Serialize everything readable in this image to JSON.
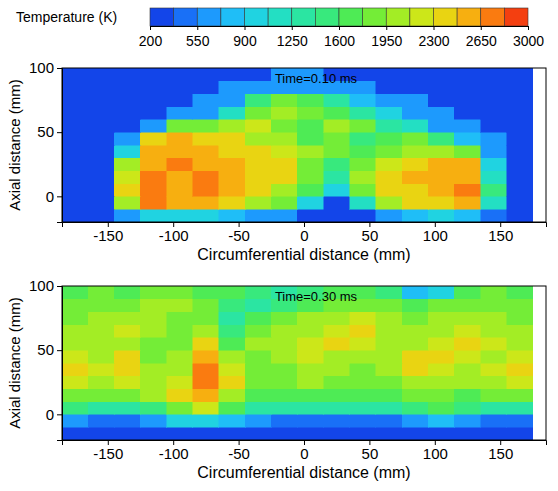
{
  "chart_data": [
    {
      "type": "heatmap",
      "annotation": "Time=0.10 ms",
      "xlabel": "Circumferential distance (mm)",
      "ylabel": "Axial distance (mm)",
      "xlim": [
        -185,
        185
      ],
      "ylim": [
        -20,
        100
      ],
      "xticks": [
        -150,
        -100,
        -50,
        0,
        50,
        100,
        150
      ],
      "yticks": [
        0,
        50,
        100
      ],
      "colorbar": {
        "title": "Temperature (K)",
        "range": [
          200,
          3000
        ],
        "ticks": [
          200,
          550,
          900,
          1250,
          1600,
          1950,
          2300,
          2650,
          3000
        ]
      },
      "x": [
        -175,
        -155,
        -135,
        -115,
        -95,
        -75,
        -55,
        -35,
        -15,
        5,
        25,
        45,
        65,
        85,
        105,
        125,
        145,
        165
      ],
      "y": [
        -15,
        -5,
        5,
        15,
        25,
        35,
        45,
        55,
        65,
        75,
        85,
        95
      ],
      "z": [
        [
          200,
          200,
          600,
          1000,
          900,
          900,
          800,
          700,
          600,
          300,
          200,
          300,
          700,
          800,
          900,
          800,
          400,
          200
        ],
        [
          200,
          200,
          2000,
          2700,
          2500,
          2600,
          2400,
          2100,
          1800,
          1000,
          300,
          1200,
          2000,
          2300,
          2400,
          2600,
          1200,
          200
        ],
        [
          200,
          200,
          2300,
          2800,
          2600,
          2700,
          2500,
          2400,
          2100,
          1700,
          1000,
          1800,
          2300,
          2400,
          2500,
          2700,
          1500,
          200
        ],
        [
          250,
          250,
          2200,
          2700,
          2600,
          2700,
          2600,
          2400,
          2300,
          1900,
          1400,
          2000,
          2400,
          2500,
          2600,
          2600,
          1200,
          250
        ],
        [
          250,
          250,
          2000,
          2600,
          2700,
          2600,
          2500,
          2400,
          2300,
          1900,
          1500,
          1800,
          2200,
          2400,
          2500,
          2500,
          1000,
          250
        ],
        [
          250,
          250,
          1000,
          2500,
          2600,
          2500,
          2400,
          2300,
          2200,
          2000,
          1800,
          1700,
          1800,
          2000,
          2100,
          1800,
          700,
          250
        ],
        [
          250,
          250,
          600,
          2300,
          2500,
          2400,
          2300,
          2100,
          2000,
          1700,
          1900,
          1500,
          1600,
          1800,
          1500,
          800,
          600,
          250
        ],
        [
          250,
          250,
          250,
          600,
          1800,
          1900,
          2000,
          2200,
          1900,
          1700,
          2000,
          1800,
          1400,
          1200,
          700,
          600,
          250,
          250
        ],
        [
          250,
          250,
          250,
          250,
          600,
          700,
          1200,
          1900,
          2100,
          1800,
          1600,
          1300,
          900,
          700,
          600,
          250,
          250,
          250
        ],
        [
          250,
          250,
          250,
          250,
          250,
          600,
          700,
          1500,
          1900,
          1700,
          1400,
          800,
          600,
          600,
          250,
          250,
          250,
          250
        ],
        [
          250,
          250,
          250,
          250,
          250,
          250,
          600,
          600,
          700,
          700,
          600,
          600,
          250,
          250,
          250,
          250,
          250,
          250
        ],
        [
          250,
          250,
          250,
          250,
          250,
          250,
          250,
          250,
          600,
          600,
          250,
          250,
          250,
          250,
          250,
          250,
          250,
          250
        ]
      ]
    },
    {
      "type": "heatmap",
      "annotation": "Time=0.30 ms",
      "xlabel": "Circumferential distance (mm)",
      "ylabel": "Axial distance (mm)",
      "xlim": [
        -185,
        185
      ],
      "ylim": [
        -20,
        100
      ],
      "xticks": [
        -150,
        -100,
        -50,
        0,
        50,
        100,
        150
      ],
      "yticks": [
        0,
        50,
        100
      ],
      "x": [
        -175,
        -155,
        -135,
        -115,
        -95,
        -75,
        -55,
        -35,
        -15,
        5,
        25,
        45,
        65,
        85,
        105,
        125,
        145,
        165
      ],
      "y": [
        -15,
        -5,
        5,
        15,
        25,
        35,
        45,
        55,
        65,
        75,
        85,
        95
      ],
      "z": [
        [
          250,
          250,
          250,
          250,
          300,
          300,
          250,
          250,
          250,
          250,
          250,
          250,
          250,
          250,
          250,
          250,
          250,
          250
        ],
        [
          600,
          500,
          500,
          600,
          900,
          1000,
          800,
          600,
          500,
          500,
          500,
          500,
          500,
          600,
          800,
          600,
          500,
          500
        ],
        [
          1500,
          1400,
          1400,
          1500,
          1900,
          2200,
          1700,
          1400,
          1400,
          1400,
          1400,
          1400,
          1400,
          1500,
          1700,
          1500,
          1400,
          1400
        ],
        [
          1900,
          1800,
          1800,
          2000,
          2300,
          2600,
          2100,
          1700,
          1600,
          1700,
          1700,
          1600,
          1700,
          1800,
          1900,
          1700,
          1800,
          1800
        ],
        [
          2200,
          2100,
          2200,
          2100,
          2200,
          2700,
          2300,
          1900,
          1800,
          2000,
          1900,
          1800,
          1900,
          2100,
          2000,
          2000,
          2100,
          2200
        ],
        [
          2300,
          2200,
          2300,
          2000,
          2100,
          2700,
          2200,
          1900,
          1900,
          2100,
          2000,
          1900,
          2000,
          2300,
          2200,
          2100,
          2200,
          2300
        ],
        [
          2200,
          2100,
          2300,
          1800,
          2000,
          2500,
          2000,
          1900,
          2000,
          2200,
          2100,
          2100,
          2000,
          2300,
          2400,
          2200,
          2100,
          2200
        ],
        [
          2100,
          2000,
          2100,
          1900,
          1900,
          2300,
          1700,
          2000,
          2100,
          2200,
          2300,
          2200,
          2000,
          2100,
          2200,
          2300,
          2200,
          2100
        ],
        [
          2000,
          2100,
          2200,
          2000,
          1800,
          2100,
          1500,
          1900,
          2000,
          2100,
          2200,
          2400,
          2100,
          2000,
          2100,
          2200,
          2100,
          2000
        ],
        [
          1900,
          2000,
          2100,
          2000,
          1900,
          1800,
          1400,
          1700,
          1900,
          2000,
          2100,
          2200,
          2000,
          1900,
          2000,
          2100,
          2000,
          1900
        ],
        [
          1800,
          1900,
          1900,
          2000,
          2000,
          1800,
          1500,
          1300,
          1500,
          1700,
          1800,
          1900,
          1800,
          1700,
          1800,
          1900,
          1800,
          1800
        ],
        [
          1700,
          1800,
          1700,
          1800,
          1900,
          1700,
          1600,
          1500,
          1400,
          1500,
          1600,
          1700,
          1500,
          800,
          1000,
          1700,
          1800,
          1700
        ]
      ]
    }
  ]
}
